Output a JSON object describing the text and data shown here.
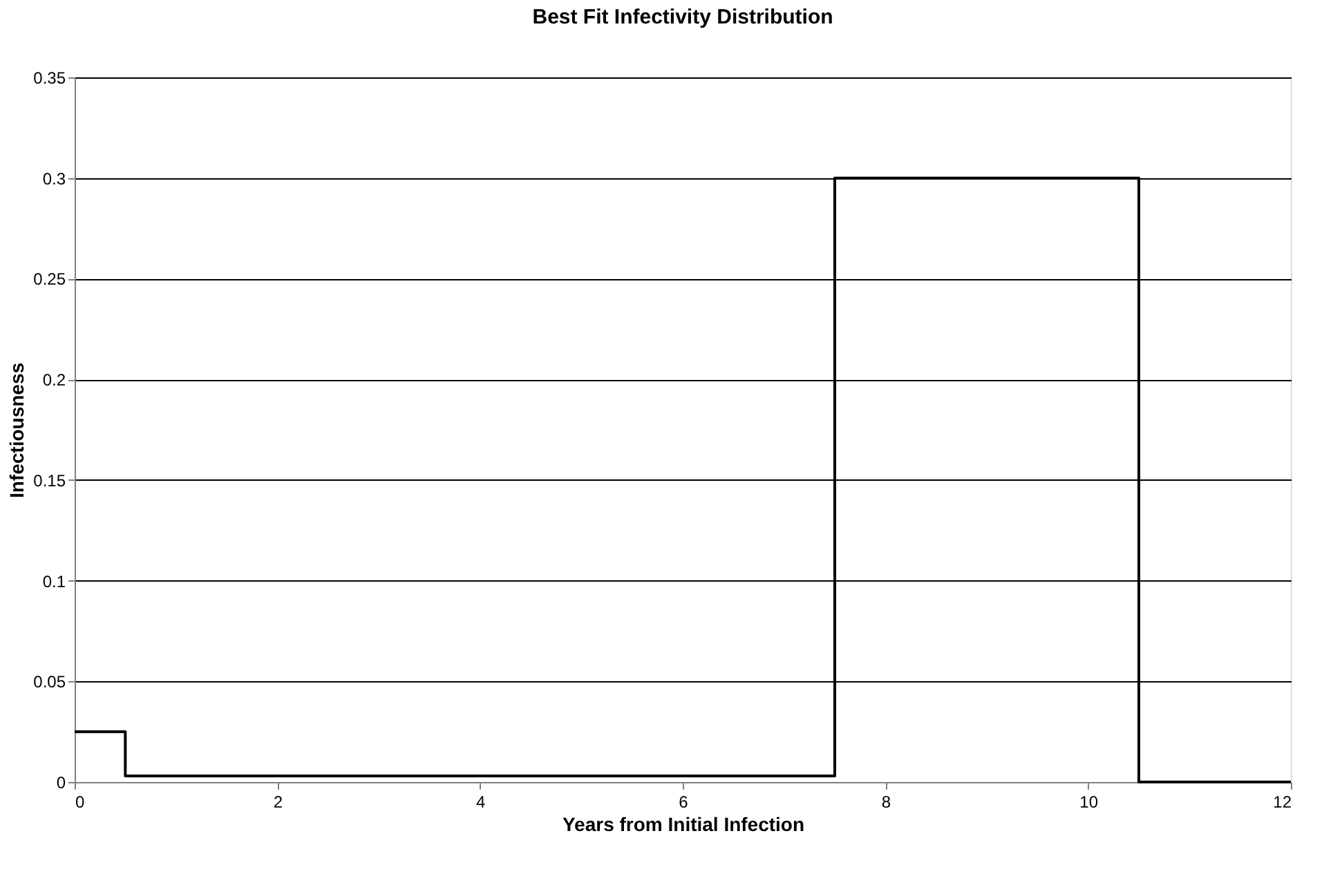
{
  "chart_data": {
    "type": "step",
    "title": "Best Fit Infectivity Distribution",
    "xlabel": "Years from Initial Infection",
    "ylabel": "Infectiousness",
    "x": [
      0,
      0.5,
      7.5,
      10.5,
      12
    ],
    "series": [
      {
        "color": "#000000",
        "values": [
          0.025,
          0.003,
          0.3,
          0,
          0
        ]
      }
    ],
    "xlim": [
      0,
      12
    ],
    "xticks": [
      0,
      2,
      4,
      6,
      8,
      10,
      12
    ],
    "ylim": [
      0,
      0.35
    ],
    "yticks": [
      0,
      0.05,
      0.1,
      0.15,
      0.2,
      0.25,
      0.3,
      0.35
    ],
    "grid": "y",
    "marker": "none",
    "line_style": "solid"
  }
}
